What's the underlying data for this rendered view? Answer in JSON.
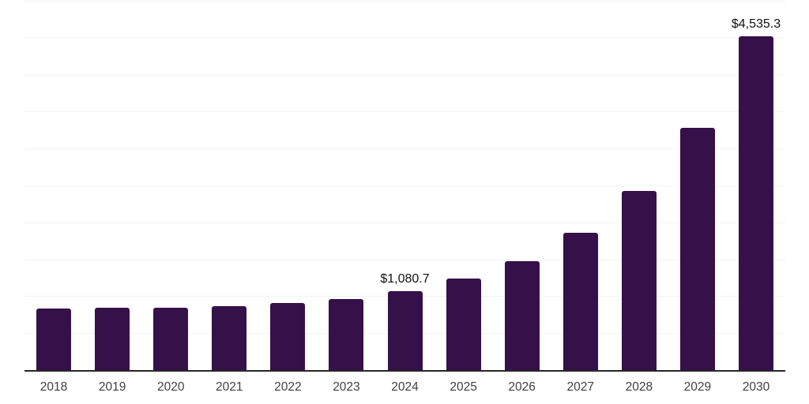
{
  "chart_data": {
    "type": "bar",
    "title": "",
    "xlabel": "",
    "ylabel": "",
    "categories": [
      "2018",
      "2019",
      "2020",
      "2021",
      "2022",
      "2023",
      "2024",
      "2025",
      "2026",
      "2027",
      "2028",
      "2029",
      "2030"
    ],
    "values": [
      840,
      860,
      860,
      875,
      915,
      970,
      1080.7,
      1250,
      1490,
      1875,
      2440,
      3290,
      4535.3
    ],
    "bar_labels": [
      null,
      null,
      null,
      null,
      null,
      null,
      "$1,080.7",
      null,
      null,
      null,
      null,
      null,
      "$4,535.3"
    ],
    "ylim": [
      0,
      5000
    ],
    "gridline_step": 500,
    "grid": true,
    "legend": false,
    "bar_color": "#351049"
  },
  "colors": {
    "bar": "#351049",
    "gridline": "#f2f2f2",
    "axis": "#262626",
    "tick_label": "#404040",
    "data_label": "#111111",
    "background": "#ffffff"
  }
}
